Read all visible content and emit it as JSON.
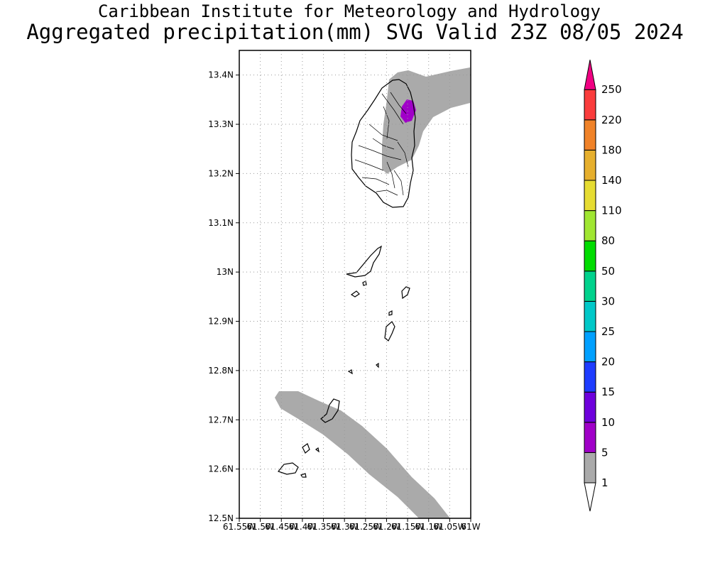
{
  "title": {
    "line1": "Caribbean Institute for Meteorology and Hydrology",
    "line2": "Aggregated precipitation(mm) SVG Valid 23Z 08/05 2024"
  },
  "map": {
    "region": "St. Vincent and the Grenadines",
    "lat_range": [
      12.5,
      13.45
    ],
    "lon_range": [
      -61.55,
      -61.0
    ],
    "grid": "dotted",
    "y_ticks": [
      {
        "value": 12.5,
        "label": "12.5N"
      },
      {
        "value": 12.6,
        "label": "12.6N"
      },
      {
        "value": 12.7,
        "label": "12.7N"
      },
      {
        "value": 12.8,
        "label": "12.8N"
      },
      {
        "value": 12.9,
        "label": "12.9N"
      },
      {
        "value": 13.0,
        "label": "13N"
      },
      {
        "value": 13.1,
        "label": "13.1N"
      },
      {
        "value": 13.2,
        "label": "13.2N"
      },
      {
        "value": 13.3,
        "label": "13.3N"
      },
      {
        "value": 13.4,
        "label": "13.4N"
      }
    ],
    "x_ticks": [
      {
        "value": -61.55,
        "label": "61.55W"
      },
      {
        "value": -61.5,
        "label": "61.5W"
      },
      {
        "value": -61.45,
        "label": "61.45W"
      },
      {
        "value": -61.4,
        "label": "61.4W"
      },
      {
        "value": -61.35,
        "label": "61.35W"
      },
      {
        "value": -61.3,
        "label": "61.3W"
      },
      {
        "value": -61.25,
        "label": "61.25W"
      },
      {
        "value": -61.2,
        "label": "61.2W"
      },
      {
        "value": -61.15,
        "label": "61.15W"
      },
      {
        "value": -61.1,
        "label": "61.1W"
      },
      {
        "value": -61.05,
        "label": "61.05W"
      },
      {
        "value": -61.0,
        "label": "61W"
      }
    ]
  },
  "colorbar": {
    "levels": [
      {
        "label": "1",
        "color": "#ffffff"
      },
      {
        "label": "5",
        "color": "#aaaaaa"
      },
      {
        "label": "10",
        "color": "#a000c8"
      },
      {
        "label": "15",
        "color": "#6e00dc"
      },
      {
        "label": "20",
        "color": "#1e3cff"
      },
      {
        "label": "25",
        "color": "#00a0ff"
      },
      {
        "label": "30",
        "color": "#00c8c8"
      },
      {
        "label": "50",
        "color": "#00d28c"
      },
      {
        "label": "80",
        "color": "#00dc00"
      },
      {
        "label": "110",
        "color": "#a0e632"
      },
      {
        "label": "140",
        "color": "#e6dc32"
      },
      {
        "label": "180",
        "color": "#e6af2d"
      },
      {
        "label": "220",
        "color": "#f08228"
      },
      {
        "label": "250",
        "color": "#fa3c3c"
      }
    ],
    "top_color": "#f00082"
  },
  "colors": {
    "precip_light": "#aaaaaa",
    "precip_10": "#a000c8"
  }
}
